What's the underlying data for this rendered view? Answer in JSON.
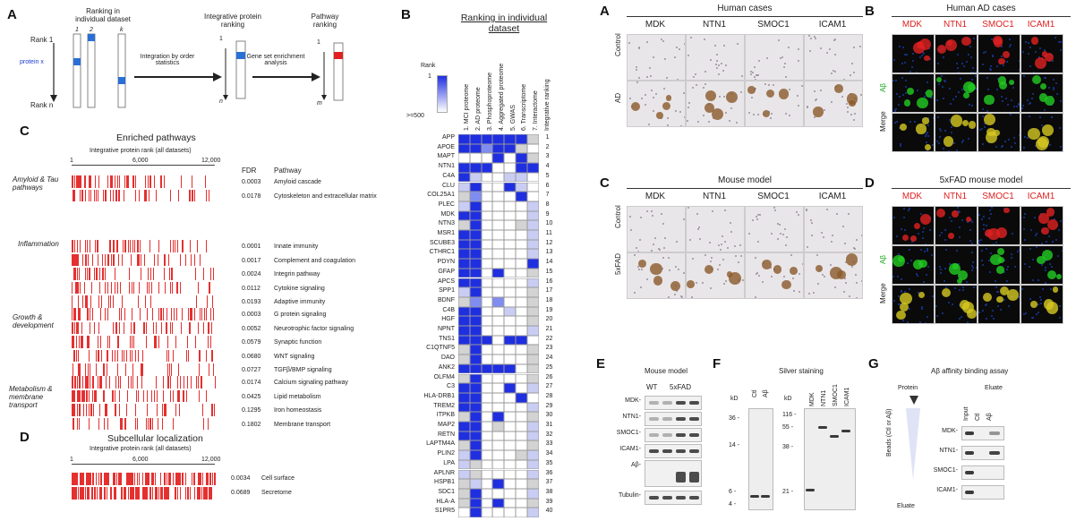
{
  "left": {
    "panelA": {
      "label": "A",
      "col1": "Ranking in individual dataset",
      "col2": "Integrative protein ranking",
      "col3": "Pathway ranking",
      "arrow1": "Integration by order statistics",
      "arrow2": "Gene set enrichment analysis",
      "rank1": "Rank 1",
      "rankn": "Rank n",
      "protein": "protein x",
      "idx1": "1",
      "idx2": "2",
      "idxk": "k",
      "n": "n",
      "m": "m",
      "one_a": "1",
      "one_b": "1"
    },
    "panelC": {
      "label": "C",
      "title": "Enriched pathways",
      "axis_title": "Integrative protein rank (all datasets)",
      "ticks": [
        "1",
        "6,000",
        "12,000"
      ],
      "fdr_header": "FDR",
      "pathway_header": "Pathway",
      "groups": [
        {
          "name": "Amyloid & Tau pathways",
          "rows": [
            [
              "0.0003",
              "Amyloid cascade"
            ],
            [
              "0.0178",
              "Cytoskeleton and extracellular matrix"
            ]
          ]
        },
        {
          "name": "Inflammation",
          "rows": [
            [
              "0.0001",
              "Innate immunity"
            ],
            [
              "0.0017",
              "Complement and coagulation"
            ],
            [
              "0.0024",
              "Integrin pathway"
            ],
            [
              "0.0112",
              "Cytokine signaling"
            ],
            [
              "0.0193",
              "Adaptive immunity"
            ]
          ]
        },
        {
          "name": "Growth & development",
          "rows": [
            [
              "0.0003",
              "G protein signaling"
            ],
            [
              "0.0052",
              "Neurotrophic factor signaling"
            ],
            [
              "0.0579",
              "Synaptic function"
            ],
            [
              "0.0680",
              "WNT signaling"
            ],
            [
              "0.0727",
              "TGFβ/BMP signaling"
            ]
          ]
        },
        {
          "name": "Metabolism & membrane transport",
          "rows": [
            [
              "0.0174",
              "Calcium signaling pathway"
            ],
            [
              "0.0425",
              "Lipid metabolism"
            ],
            [
              "0.1295",
              "Iron homeostasis"
            ],
            [
              "0.1802",
              "Membrane transport"
            ]
          ]
        }
      ]
    },
    "panelD": {
      "label": "D",
      "title": "Subcellular localization",
      "axis_title": "Integrative protein rank (all datasets)",
      "ticks": [
        "1",
        "6,000",
        "12,000"
      ],
      "rows": [
        [
          "0.0034",
          "Cell surface"
        ],
        [
          "0.0689",
          "Secretome"
        ]
      ]
    },
    "panelB": {
      "label": "B",
      "title": "Ranking in individual dataset",
      "legend_title": "Rank",
      "legend_top": "1",
      "legend_bottom": ">=500",
      "columns": [
        "1. MCI proteome",
        "2. AD proteome",
        "3. Phosphoproteome",
        "4. Aggregated proteome",
        "5. GWAS",
        "6. Transcriptome",
        "7. Interactome",
        "Integrative ranking"
      ],
      "genes": [
        "APP",
        "APOE",
        "MAPT",
        "NTN1",
        "C4A",
        "CLU",
        "COL25A1",
        "PLEC",
        "MDK",
        "NTN3",
        "MSR1",
        "SCUBE3",
        "CTHRC1",
        "PDYN",
        "GFAP",
        "APCS",
        "SPP1",
        "BDNF",
        "C4B",
        "HGF",
        "NPNT",
        "TNS1",
        "C1QTNF5",
        "DAO",
        "ANK2",
        "OLFM4",
        "C3",
        "HLA-DRB1",
        "TREM2",
        "ITPKB",
        "MAP2",
        "RETN",
        "LAPTM4A",
        "PLIN2",
        "LPA",
        "APLNR",
        "HSPB1",
        "SDC1",
        "HLA-A",
        "S1PR5"
      ],
      "ranks": [
        "1",
        "2",
        "3",
        "4",
        "5",
        "6",
        "7",
        "8",
        "9",
        "10",
        "11",
        "12",
        "13",
        "14",
        "15",
        "16",
        "17",
        "18",
        "19",
        "20",
        "21",
        "22",
        "23",
        "24",
        "25",
        "26",
        "27",
        "28",
        "29",
        "30",
        "31",
        "32",
        "33",
        "34",
        "35",
        "36",
        "37",
        "38",
        "39",
        "40"
      ],
      "colors": {
        "strong": "#1f2fe0",
        "mid": "#7f8cf0",
        "light": "#c9cdf3",
        "grey": "#d3d3d3",
        "white": "#ffffff"
      }
    }
  },
  "right": {
    "panelA": {
      "label": "A",
      "title": "Human cases",
      "cols": [
        "MDK",
        "NTN1",
        "SMOC1",
        "ICAM1"
      ],
      "rows": [
        "Control",
        "AD"
      ]
    },
    "panelB": {
      "label": "B",
      "title": "Human AD cases",
      "cols": [
        "MDK",
        "NTN1",
        "SMOC1",
        "ICAM1"
      ],
      "rows": [
        "Aβ",
        "Merge"
      ]
    },
    "panelC": {
      "label": "C",
      "title": "Mouse model",
      "cols": [
        "MDK",
        "NTN1",
        "SMOC1",
        "ICAM1"
      ],
      "rows": [
        "Control",
        "5xFAD"
      ]
    },
    "panelD": {
      "label": "D",
      "title": "5xFAD mouse model",
      "cols": [
        "MDK",
        "NTN1",
        "SMOC1",
        "ICAM1"
      ],
      "rows": [
        "Aβ",
        "Merge"
      ]
    },
    "panelE": {
      "label": "E",
      "title": "Mouse model",
      "groups": [
        "WT",
        "5xFAD"
      ],
      "bands": [
        "MDK-",
        "NTN1-",
        "SMOC1-",
        "ICAM1-",
        "Aβ-",
        "Tubulin-"
      ]
    },
    "panelF": {
      "label": "F",
      "title": "Silver staining",
      "kd1": "kD",
      "kd2": "kD",
      "lanes1": [
        "Ctl",
        "Aβ"
      ],
      "lanes2": [
        "MDK",
        "NTN1",
        "SMOC1",
        "ICAM1"
      ],
      "markers1": [
        "36 -",
        "14 -",
        "6 -",
        "4 -"
      ],
      "markers2": [
        "116 -",
        "55 -",
        "38 -",
        "21 -"
      ]
    },
    "panelG": {
      "label": "G",
      "title": "Aβ affinity binding assay",
      "protein": "Protein",
      "beads": "Beads (Ctl or Aβ)",
      "eluate_bottom": "Eluate",
      "eluate_header": "Eluate",
      "lanes": [
        "Input",
        "Ctl",
        "Aβ"
      ],
      "bands": [
        "MDK-",
        "NTN1-",
        "SMOC1-",
        "ICAM1-"
      ]
    }
  }
}
